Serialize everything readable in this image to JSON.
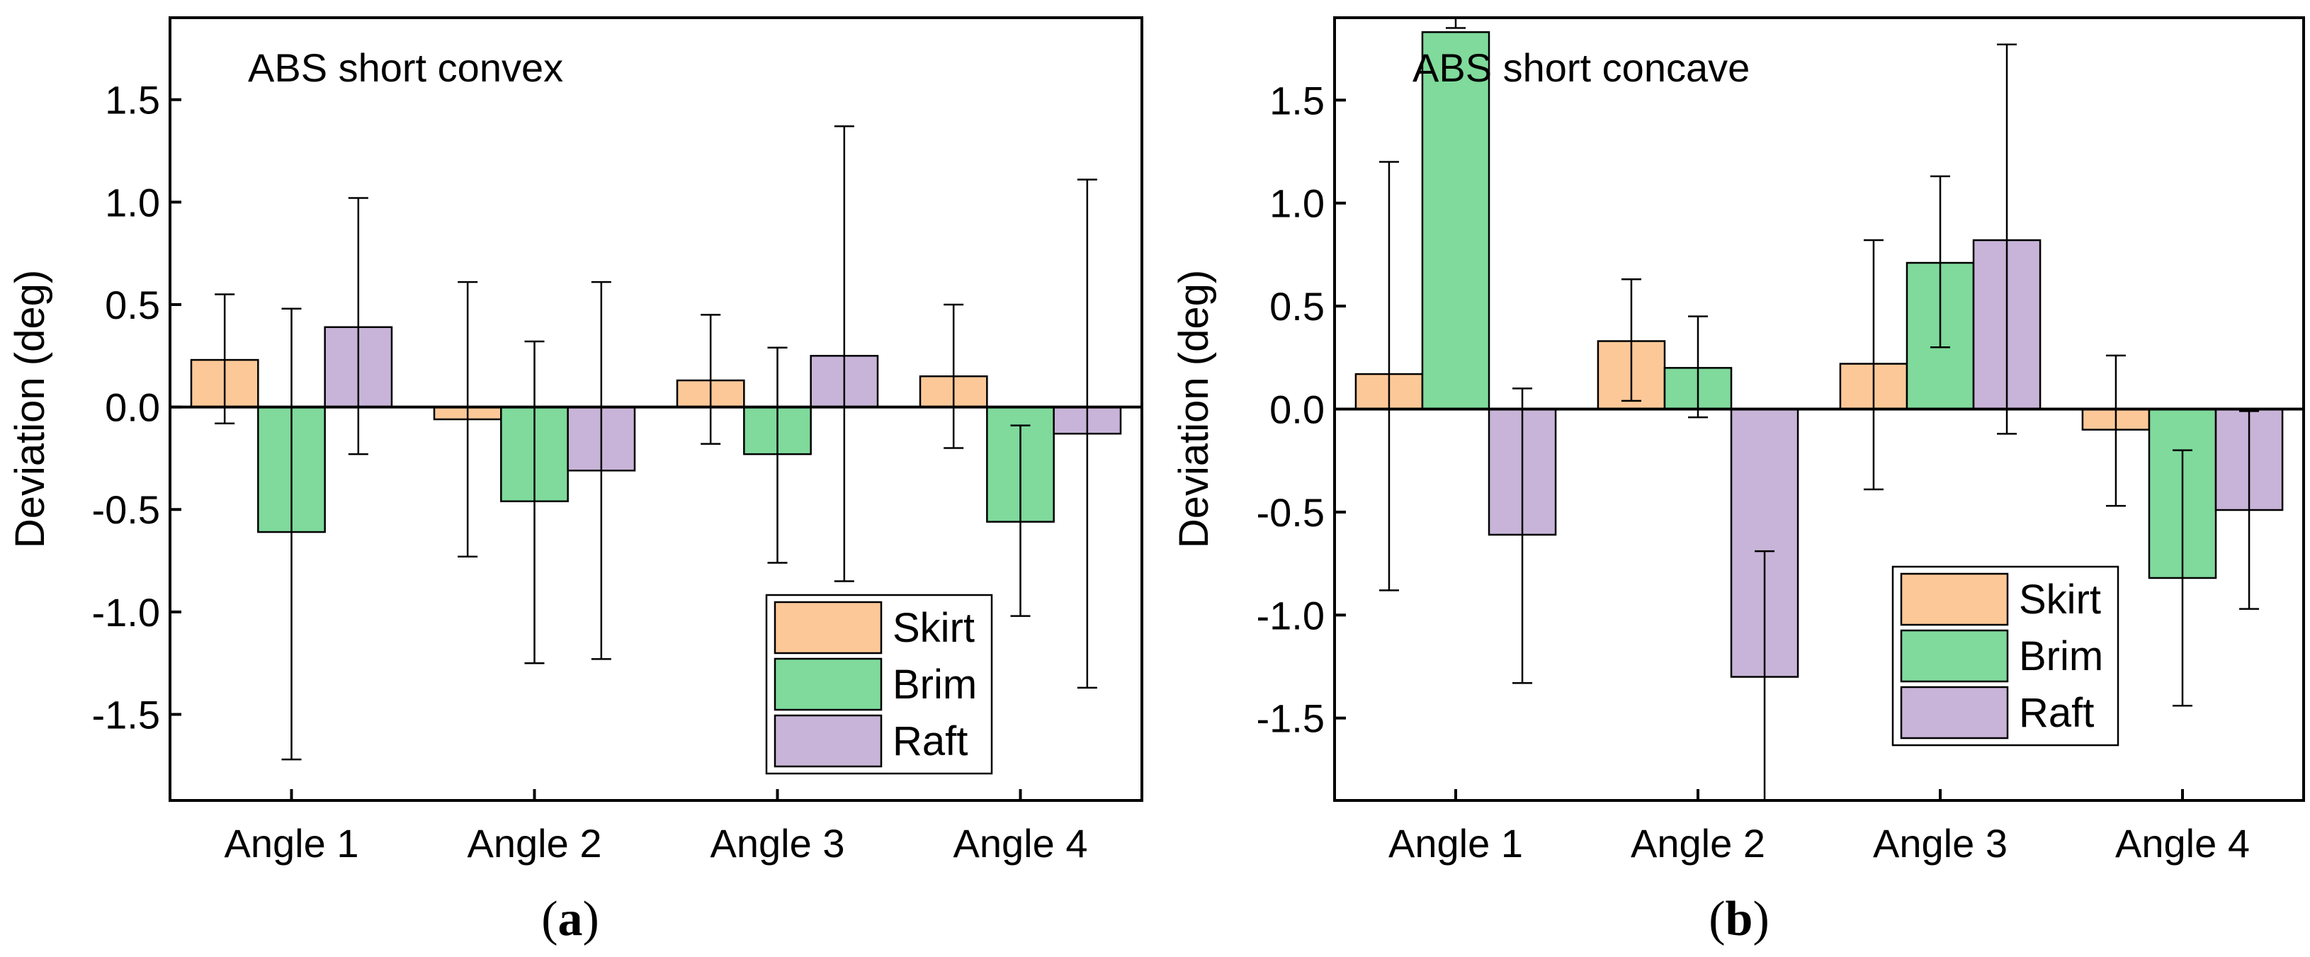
{
  "colors": {
    "skirt": "#FDC898",
    "brim": "#7FDA9B",
    "raft": "#C8B4D8",
    "axis": "#000000"
  },
  "chart_data": [
    {
      "type": "bar",
      "title": "ABS short convex",
      "caption": {
        "label": "a"
      },
      "xlabel": "",
      "ylabel": "Deviation (deg)",
      "ylim": [
        -1.92,
        1.9
      ],
      "yticks": [
        -1.5,
        -1.0,
        -0.5,
        0.0,
        0.5,
        1.0,
        1.5
      ],
      "ytick_labels": [
        "-1.5",
        "-1.0",
        "-0.5",
        "0.0",
        "0.5",
        "1.0",
        "1.5"
      ],
      "categories": [
        "Angle 1",
        "Angle 2",
        "Angle 3",
        "Angle 4"
      ],
      "series": [
        {
          "name": "Skirt",
          "color_key": "skirt",
          "values": [
            0.23,
            -0.06,
            0.13,
            0.15
          ],
          "err_low": [
            -0.08,
            -0.73,
            -0.18,
            -0.2
          ],
          "err_high": [
            0.55,
            0.61,
            0.45,
            0.5
          ]
        },
        {
          "name": "Brim",
          "color_key": "brim",
          "values": [
            -0.61,
            -0.46,
            -0.23,
            -0.56
          ],
          "err_low": [
            -1.72,
            -1.25,
            -0.76,
            -1.02
          ],
          "err_high": [
            0.48,
            0.32,
            0.29,
            -0.09
          ]
        },
        {
          "name": "Raft",
          "color_key": "raft",
          "values": [
            0.39,
            -0.31,
            0.25,
            -0.13
          ],
          "err_low": [
            -0.23,
            -1.23,
            -0.85,
            -1.37
          ],
          "err_high": [
            1.02,
            0.61,
            1.37,
            1.11
          ]
        }
      ],
      "legend_position": "bottom-right"
    },
    {
      "type": "bar",
      "title": "ABS short concave",
      "caption": {
        "label": "b"
      },
      "xlabel": "",
      "ylabel": "Deviation (deg)",
      "ylim": [
        -1.9,
        1.9
      ],
      "yticks": [
        -1.5,
        -1.0,
        -0.5,
        0.0,
        0.5,
        1.0,
        1.5
      ],
      "ytick_labels": [
        "-1.5",
        "-1.0",
        "-0.5",
        "0.0",
        "0.5",
        "1.0",
        "1.5"
      ],
      "categories": [
        "Angle 1",
        "Angle 2",
        "Angle 3",
        "Angle 4"
      ],
      "series": [
        {
          "name": "Skirt",
          "color_key": "skirt",
          "values": [
            0.17,
            0.33,
            0.22,
            -0.1
          ],
          "err_low": [
            -0.88,
            0.04,
            -0.39,
            -0.47
          ],
          "err_high": [
            1.2,
            0.63,
            0.82,
            0.26
          ]
        },
        {
          "name": "Brim",
          "color_key": "brim",
          "values": [
            1.83,
            0.2,
            0.71,
            -0.82
          ],
          "err_low": [
            1.85,
            -0.04,
            0.3,
            -1.44
          ],
          "err_high": [
            1.9,
            0.45,
            1.13,
            -0.2
          ]
        },
        {
          "name": "Raft",
          "color_key": "raft",
          "values": [
            -0.61,
            -1.3,
            0.82,
            -0.49
          ],
          "err_low": [
            -1.33,
            -1.9,
            -0.12,
            -0.97
          ],
          "err_high": [
            0.1,
            -0.69,
            1.77,
            -0.01
          ]
        }
      ],
      "legend_position": "bottom-right"
    }
  ]
}
